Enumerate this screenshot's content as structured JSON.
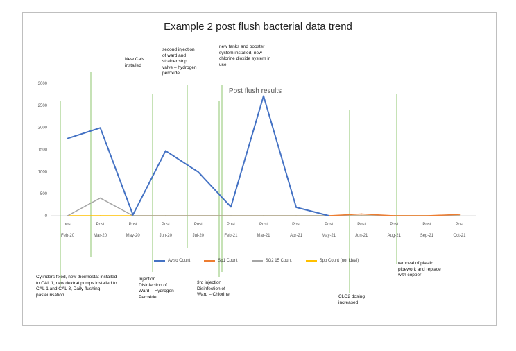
{
  "chart_data": {
    "type": "line",
    "title": "Example 2 post flush bacterial data trend",
    "subtitle": "Post flush results",
    "categories": [
      [
        "post",
        "Feb-20"
      ],
      [
        "Post",
        "Mar-20"
      ],
      [
        "Post",
        "May-20"
      ],
      [
        "Post",
        "Jun-20"
      ],
      [
        "Post",
        "Jul-20"
      ],
      [
        "Post",
        "Feb-21"
      ],
      [
        "Post",
        "Mar-21"
      ],
      [
        "Post",
        "Apr-21"
      ],
      [
        "Post",
        "May-21"
      ],
      [
        "Post",
        "Jun-21"
      ],
      [
        "Post",
        "Aug-21"
      ],
      [
        "Post",
        "Sep-21"
      ],
      [
        "Post",
        "Oct-21"
      ]
    ],
    "yticks": [
      "0",
      "500",
      "1000",
      "1500",
      "2000",
      "2500",
      "3000"
    ],
    "ylim": [
      0,
      3000
    ],
    "series": [
      {
        "name": "Aviso Count",
        "color": "#4472c4",
        "values": [
          1750,
          1990,
          20,
          1470,
          990,
          200,
          2710,
          190,
          0,
          null,
          null,
          null,
          null
        ]
      },
      {
        "name": "Sp1 Count",
        "color": "#ed7d31",
        "values": [
          null,
          null,
          null,
          null,
          null,
          null,
          null,
          null,
          0,
          40,
          0,
          0,
          30
        ]
      },
      {
        "name": "SG2 15 Count",
        "color": "#a5a5a5",
        "values": [
          0,
          400,
          0,
          0,
          0,
          0,
          0,
          0,
          0,
          0,
          0,
          0,
          0
        ]
      },
      {
        "name": "Spp Count (not ideal)",
        "color": "#ffc000",
        "values": [
          0,
          0,
          0,
          0,
          0,
          0,
          0,
          0,
          0,
          0,
          0,
          0,
          0
        ]
      }
    ],
    "annotations": [
      "Cylinders fixed, new thermostat installed to CAL 1, new dextrat pumps installed to CAL 1 and CAL 3, Daily flushing, pasteurisation",
      "New Cals installed",
      "Injection Disinfection of Ward – Hydrogen Peroxide",
      "second injection of ward and strainer strip valve – hydrogen peroxide",
      "3rd injection Disinfection of Ward – Chlorine",
      "new tanks and booster system installed, new chlorine dioxide system in use",
      "CLO2 dosing increased",
      "removal of plastic pipework and replace with copper"
    ]
  }
}
